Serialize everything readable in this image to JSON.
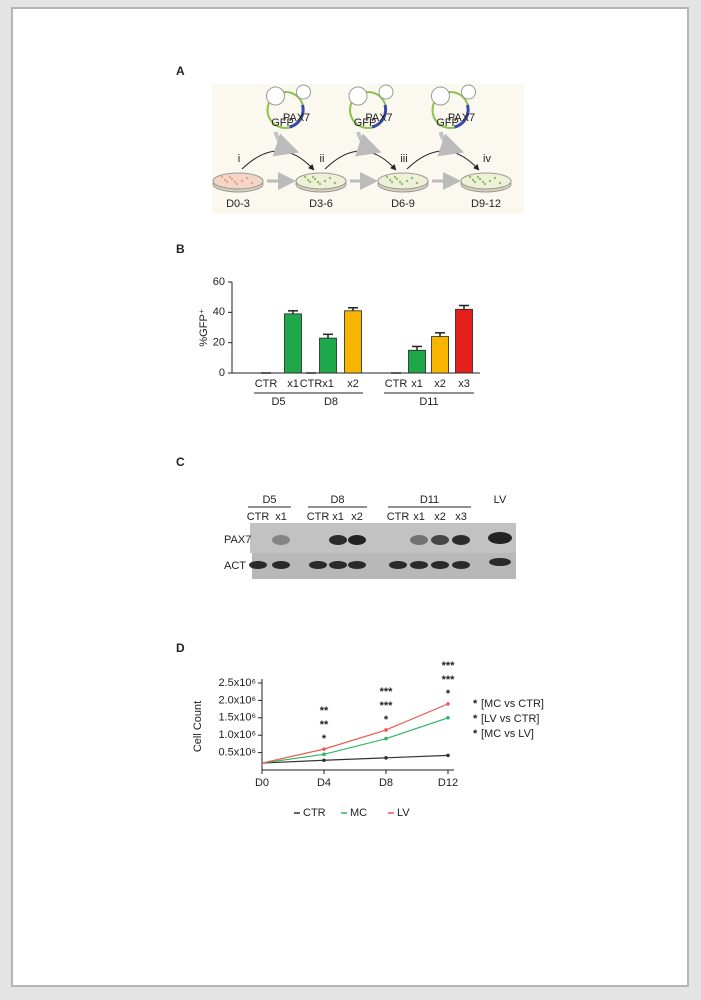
{
  "panel_a": {
    "label": "A",
    "plasmid_labels": [
      "GFP",
      "PAX7"
    ],
    "steps": [
      {
        "numeral": "i",
        "day": "D0-3"
      },
      {
        "numeral": "ii",
        "day": "D3-6"
      },
      {
        "numeral": "iii",
        "day": "D6-9"
      },
      {
        "numeral": "iv",
        "day": "D9-12"
      }
    ]
  },
  "panel_b": {
    "label": "B"
  },
  "panel_c": {
    "label": "C",
    "groups": [
      {
        "name": "D5",
        "lanes": [
          "CTR",
          "x1"
        ]
      },
      {
        "name": "D8",
        "lanes": [
          "CTR",
          "x1",
          "x2"
        ]
      },
      {
        "name": "D11",
        "lanes": [
          "CTR",
          "x1",
          "x2",
          "x3"
        ]
      }
    ],
    "control": "LV",
    "rows": [
      "PAX7",
      "ACT"
    ]
  },
  "panel_d": {
    "label": "D"
  },
  "chart_data": [
    {
      "type": "bar",
      "y_label": "%GFP⁺",
      "ylim": [
        0,
        60
      ],
      "yticks": [
        0,
        20,
        40,
        60
      ],
      "groups": [
        {
          "name": "D5",
          "categories": [
            "CTR",
            "x1"
          ],
          "values": [
            0,
            39
          ],
          "errors": [
            0,
            2
          ],
          "colors": [
            "#1fa84a",
            "#1fa84a"
          ]
        },
        {
          "name": "D8",
          "categories": [
            "CTR",
            "x1",
            "x2"
          ],
          "values": [
            0,
            23,
            41
          ],
          "errors": [
            0,
            2.5,
            2
          ],
          "colors": [
            "#1fa84a",
            "#1fa84a",
            "#f7b500"
          ]
        },
        {
          "name": "D11",
          "categories": [
            "CTR",
            "x1",
            "x2",
            "x3"
          ],
          "values": [
            0,
            15,
            24,
            42
          ],
          "errors": [
            0,
            2.5,
            2.5,
            2.5
          ],
          "colors": [
            "#1fa84a",
            "#1fa84a",
            "#f7b500",
            "#e3201c"
          ]
        }
      ]
    },
    {
      "type": "line",
      "y_label": "Cell Count",
      "categories": [
        "D0",
        "D4",
        "D8",
        "D12"
      ],
      "ylim": [
        0,
        2500000
      ],
      "yticks": [
        {
          "value": 500000,
          "label": "0.5x10⁶"
        },
        {
          "value": 1000000,
          "label": "1.0x10⁶"
        },
        {
          "value": 1500000,
          "label": "1.5x10⁶"
        },
        {
          "value": 2000000,
          "label": "2.0x10⁶"
        },
        {
          "value": 2500000,
          "label": "2.5x10⁶"
        }
      ],
      "series": [
        {
          "name": "CTR",
          "color": "#333333",
          "values": [
            200000,
            280000,
            350000,
            420000
          ]
        },
        {
          "name": "MC",
          "color": "#2fb565",
          "values": [
            200000,
            450000,
            900000,
            1500000
          ]
        },
        {
          "name": "LV",
          "color": "#ec5a52",
          "values": [
            200000,
            600000,
            1150000,
            1900000
          ]
        }
      ],
      "significance": [
        {
          "symbol": "*",
          "name": "[MC vs CTR]",
          "color": "#2fb565",
          "labels": [
            null,
            "**",
            "***",
            "***"
          ]
        },
        {
          "symbol": "*",
          "name": "[LV vs CTR]",
          "color": "#ec2a22",
          "labels": [
            null,
            "**",
            "***",
            "***"
          ]
        },
        {
          "symbol": "*",
          "name": "[MC vs LV]",
          "color": "#222222",
          "labels": [
            null,
            "*",
            "*",
            "*"
          ]
        }
      ]
    }
  ]
}
